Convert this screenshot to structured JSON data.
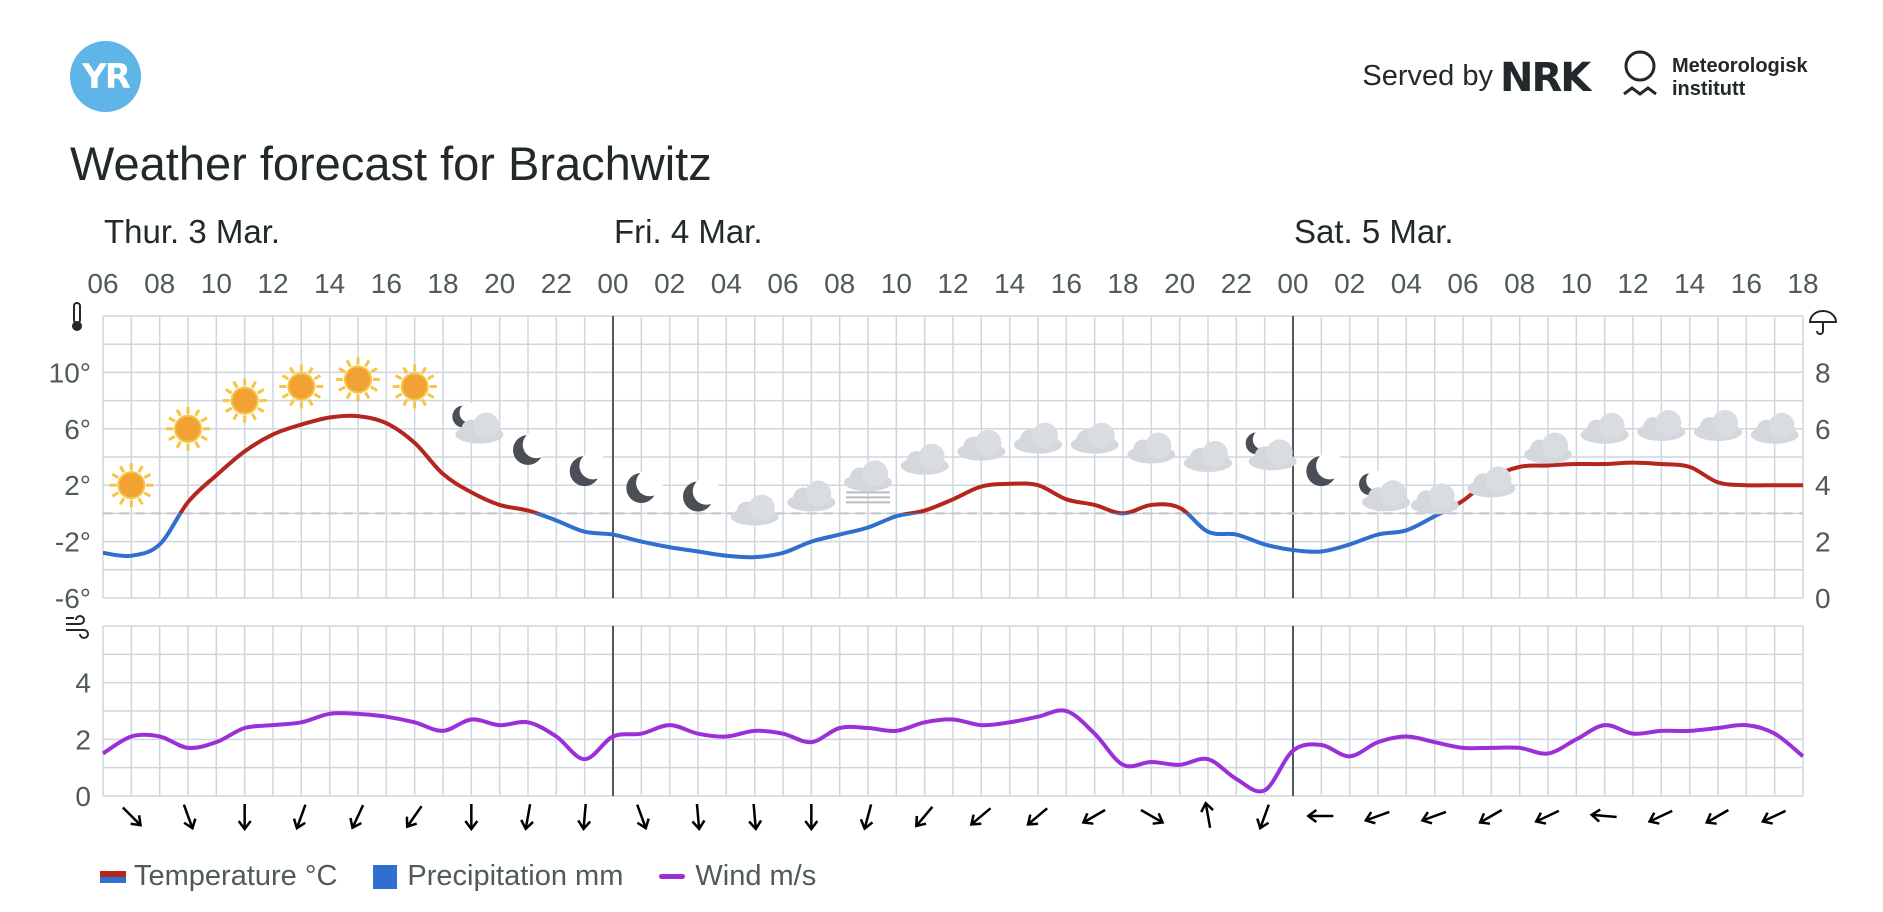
{
  "header": {
    "logo_text": "YR",
    "served_by": "Served by",
    "nrk_logo": "NRK",
    "met_line1": "Meteorologisk",
    "met_line2": "institutt"
  },
  "title": "Weather forecast for Brachwitz",
  "colors": {
    "temp_warm": "#b4261e",
    "temp_cold": "#2f6fce",
    "precip": "#2f6fce",
    "wind": "#9b30d9",
    "grid": "#cfd6dd",
    "day_line": "#505a5c"
  },
  "legend": {
    "temperature": "Temperature °C",
    "precipitation": "Precipitation mm",
    "wind": "Wind m/s"
  },
  "chart_data": {
    "type": "line",
    "days": [
      {
        "label": "Thur. 3 Mar.",
        "start_hour": 6
      },
      {
        "label": "Fri. 4 Mar.",
        "start_hour": 24
      },
      {
        "label": "Sat. 5 Mar.",
        "start_hour": 48
      }
    ],
    "x_range_hours": [
      6,
      66
    ],
    "x_tick_labels": [
      "06",
      "08",
      "10",
      "12",
      "14",
      "16",
      "18",
      "20",
      "22",
      "00",
      "02",
      "04",
      "06",
      "08",
      "10",
      "12",
      "14",
      "16",
      "18",
      "20",
      "22",
      "00",
      "02",
      "04",
      "06",
      "08",
      "10",
      "12",
      "14",
      "16",
      "18"
    ],
    "temperature": {
      "ylabels": [
        "10°",
        "6°",
        "2°",
        "-2°",
        "-6°"
      ],
      "ylim": [
        -6,
        14
      ],
      "hours": [
        6,
        7,
        8,
        9,
        10,
        11,
        12,
        13,
        14,
        15,
        16,
        17,
        18,
        19,
        20,
        21,
        22,
        23,
        24,
        25,
        26,
        27,
        28,
        29,
        30,
        31,
        32,
        33,
        34,
        35,
        36,
        37,
        38,
        39,
        40,
        41,
        42,
        43,
        44,
        45,
        46,
        47,
        48,
        49,
        50,
        51,
        52,
        53,
        54,
        55,
        56,
        57,
        58,
        59,
        60,
        61,
        62,
        63,
        64,
        65,
        66
      ],
      "values": [
        -2.8,
        -3.0,
        -2.2,
        0.8,
        2.7,
        4.4,
        5.6,
        6.3,
        6.8,
        6.9,
        6.4,
        5.0,
        2.8,
        1.5,
        0.6,
        0.2,
        -0.5,
        -1.3,
        -1.5,
        -2.0,
        -2.4,
        -2.7,
        -3.0,
        -3.1,
        -2.8,
        -2.0,
        -1.5,
        -1.0,
        -0.2,
        0.2,
        1.0,
        1.9,
        2.1,
        2.0,
        1.0,
        0.6,
        0.0,
        0.6,
        0.4,
        -1.3,
        -1.5,
        -2.2,
        -2.6,
        -2.7,
        -2.2,
        -1.5,
        -1.2,
        -0.2,
        0.9,
        2.5,
        3.3,
        3.4,
        3.5,
        3.5,
        3.6,
        3.5,
        3.3,
        2.2,
        2.0,
        2.0,
        2.0
      ]
    },
    "precipitation": {
      "ylabels": [
        "8",
        "6",
        "4",
        "2",
        "0"
      ],
      "ylim": [
        0,
        10
      ],
      "values": []
    },
    "wind": {
      "ylabels": [
        "4",
        "2",
        "0"
      ],
      "ylim": [
        0,
        6
      ],
      "hours": [
        6,
        7,
        8,
        9,
        10,
        11,
        12,
        13,
        14,
        15,
        16,
        17,
        18,
        19,
        20,
        21,
        22,
        23,
        24,
        25,
        26,
        27,
        28,
        29,
        30,
        31,
        32,
        33,
        34,
        35,
        36,
        37,
        38,
        39,
        40,
        41,
        42,
        43,
        44,
        45,
        46,
        47,
        48,
        49,
        50,
        51,
        52,
        53,
        54,
        55,
        56,
        57,
        58,
        59,
        60,
        61,
        62,
        63,
        64,
        65,
        66
      ],
      "values": [
        1.5,
        2.1,
        2.1,
        1.7,
        1.9,
        2.4,
        2.5,
        2.6,
        2.9,
        2.9,
        2.8,
        2.6,
        2.3,
        2.7,
        2.5,
        2.6,
        2.1,
        1.3,
        2.1,
        2.2,
        2.5,
        2.2,
        2.1,
        2.3,
        2.2,
        1.9,
        2.4,
        2.4,
        2.3,
        2.6,
        2.7,
        2.5,
        2.6,
        2.8,
        3.0,
        2.2,
        1.1,
        1.2,
        1.1,
        1.3,
        0.6,
        0.2,
        1.6,
        1.8,
        1.4,
        1.9,
        2.1,
        1.9,
        1.7,
        1.7,
        1.7,
        1.5,
        2.0,
        2.5,
        2.2,
        2.3,
        2.3,
        2.4,
        2.5,
        2.2,
        1.4
      ]
    },
    "wind_direction_hours": [
      7,
      9,
      11,
      13,
      15,
      17,
      19,
      21,
      23,
      25,
      27,
      29,
      31,
      33,
      35,
      37,
      39,
      41,
      43,
      45,
      47,
      49,
      51,
      53,
      55,
      57,
      59,
      61,
      63,
      65
    ],
    "wind_arrow_rotation_deg": [
      315,
      340,
      0,
      20,
      25,
      35,
      0,
      10,
      5,
      340,
      355,
      355,
      0,
      15,
      40,
      50,
      50,
      60,
      300,
      170,
      20,
      90,
      70,
      70,
      60,
      65,
      95,
      65,
      60,
      65
    ],
    "weather_symbols": [
      {
        "hour": 7,
        "symbol": "sun",
        "temp": 2
      },
      {
        "hour": 9,
        "symbol": "sun",
        "temp": 6
      },
      {
        "hour": 11,
        "symbol": "sun",
        "temp": 8
      },
      {
        "hour": 13,
        "symbol": "sun",
        "temp": 9
      },
      {
        "hour": 15,
        "symbol": "sun",
        "temp": 9.5
      },
      {
        "hour": 17,
        "symbol": "sun",
        "temp": 9
      },
      {
        "hour": 19,
        "symbol": "moon-partly-cloudy",
        "temp": 6.3
      },
      {
        "hour": 21,
        "symbol": "moon",
        "temp": 4.5
      },
      {
        "hour": 23,
        "symbol": "moon",
        "temp": 3
      },
      {
        "hour": 25,
        "symbol": "moon",
        "temp": 1.8
      },
      {
        "hour": 27,
        "symbol": "moon",
        "temp": 1.2
      },
      {
        "hour": 29,
        "symbol": "cloud",
        "temp": 0.2
      },
      {
        "hour": 31,
        "symbol": "cloud",
        "temp": 1.2
      },
      {
        "hour": 33,
        "symbol": "fog",
        "temp": 2.2
      },
      {
        "hour": 35,
        "symbol": "cloud",
        "temp": 3.8
      },
      {
        "hour": 37,
        "symbol": "cloud",
        "temp": 4.8
      },
      {
        "hour": 39,
        "symbol": "cloud",
        "temp": 5.3
      },
      {
        "hour": 41,
        "symbol": "cloud",
        "temp": 5.3
      },
      {
        "hour": 43,
        "symbol": "cloud",
        "temp": 4.6
      },
      {
        "hour": 45,
        "symbol": "cloud",
        "temp": 4.0
      },
      {
        "hour": 47,
        "symbol": "moon-partly-cloudy",
        "temp": 4.4
      },
      {
        "hour": 49,
        "symbol": "moon",
        "temp": 3
      },
      {
        "hour": 51,
        "symbol": "moon-partly-cloudy",
        "temp": 1.5
      },
      {
        "hour": 53,
        "symbol": "cloud",
        "temp": 1.0
      },
      {
        "hour": 55,
        "symbol": "cloud",
        "temp": 2.2
      },
      {
        "hour": 57,
        "symbol": "cloud",
        "temp": 4.6
      },
      {
        "hour": 59,
        "symbol": "cloud",
        "temp": 6
      },
      {
        "hour": 61,
        "symbol": "cloud",
        "temp": 6.2
      },
      {
        "hour": 63,
        "symbol": "cloud",
        "temp": 6.2
      },
      {
        "hour": 65,
        "symbol": "cloud",
        "temp": 6
      }
    ]
  }
}
